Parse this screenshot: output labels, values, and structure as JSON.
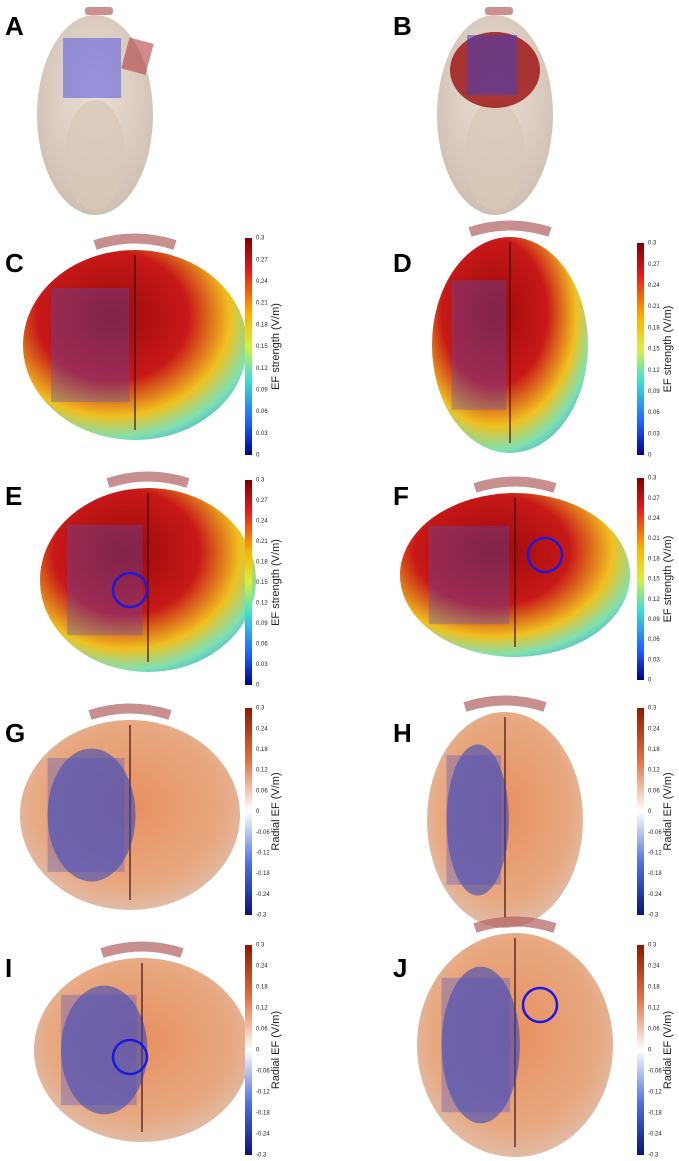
{
  "panels": [
    {
      "label": "A"
    },
    {
      "label": "B"
    },
    {
      "label": "C",
      "colorbar": {
        "label": "EF strength (V/m)",
        "ticks": [
          "0.3",
          "0.27",
          "0.24",
          "0.21",
          "0.18",
          "0.15",
          "0.12",
          "0.09",
          "0.06",
          "0.03",
          "0"
        ]
      }
    },
    {
      "label": "D",
      "colorbar": {
        "label": "EF strength (V/m)",
        "ticks": [
          "0.3",
          "0.27",
          "0.24",
          "0.21",
          "0.18",
          "0.15",
          "0.12",
          "0.09",
          "0.06",
          "0.03",
          "0"
        ]
      }
    },
    {
      "label": "E",
      "colorbar": {
        "label": "EF strength (V/m)",
        "ticks": [
          "0.3",
          "0.27",
          "0.24",
          "0.21",
          "0.18",
          "0.15",
          "0.12",
          "0.09",
          "0.06",
          "0.03",
          "0"
        ]
      }
    },
    {
      "label": "F",
      "colorbar": {
        "label": "EF strength (V/m)",
        "ticks": [
          "0.3",
          "0.27",
          "0.24",
          "0.21",
          "0.18",
          "0.15",
          "0.12",
          "0.09",
          "0.06",
          "0.03",
          "0"
        ]
      }
    },
    {
      "label": "G",
      "colorbar": {
        "label": "Radial EF (V/m)",
        "ticks": [
          "0.3",
          "0.24",
          "0.18",
          "0.12",
          "0.06",
          "0",
          "-0.06",
          "-0.12",
          "-0.18",
          "-0.24",
          "-0.3"
        ]
      }
    },
    {
      "label": "H",
      "colorbar": {
        "label": "Radial EF (V/m)",
        "ticks": [
          "0.3",
          "0.24",
          "0.18",
          "0.12",
          "0.06",
          "0",
          "-0.06",
          "-0.12",
          "-0.18",
          "-0.24",
          "-0.3"
        ]
      }
    },
    {
      "label": "I",
      "colorbar": {
        "label": "Radial EF (V/m)",
        "ticks": [
          "0.3",
          "0.24",
          "0.18",
          "0.12",
          "0.06",
          "0",
          "-0.06",
          "-0.12",
          "-0.18",
          "-0.24",
          "-0.3"
        ]
      }
    },
    {
      "label": "J",
      "colorbar": {
        "label": "Radial EF (V/m)",
        "ticks": [
          "0.3",
          "0.24",
          "0.18",
          "0.12",
          "0.06",
          "0",
          "-0.06",
          "-0.12",
          "-0.18",
          "-0.24",
          "-0.3"
        ]
      }
    }
  ]
}
